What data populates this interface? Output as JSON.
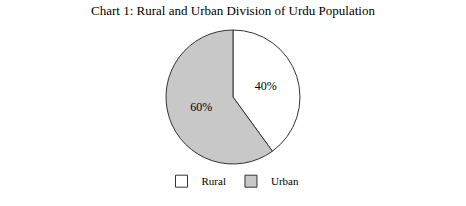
{
  "chart_data": {
    "type": "pie",
    "title": "Chart 1: Rural and Urban Division of Urdu Population",
    "categories": [
      "Rural",
      "Urban"
    ],
    "values": [
      40,
      60
    ],
    "value_labels": [
      "40%",
      "60%"
    ],
    "colors": [
      "#ffffff",
      "#c8c8c8"
    ],
    "legend": "bottom"
  }
}
